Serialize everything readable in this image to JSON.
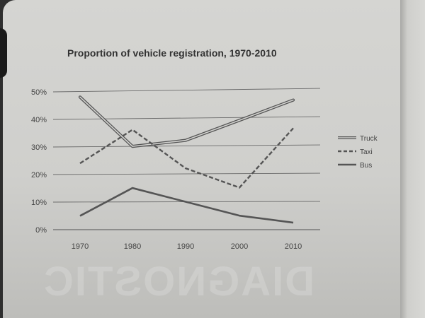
{
  "watermark_text": "DIAGNOSTIC",
  "chart_data": {
    "type": "line",
    "title": "Proportion of vehicle registration, 1970-2010",
    "xlabel": "",
    "ylabel": "",
    "categories": [
      "1970",
      "1980",
      "1990",
      "2000",
      "2010"
    ],
    "y_ticks": [
      "0%",
      "10%",
      "20%",
      "30%",
      "40%",
      "50%"
    ],
    "ylim": [
      0,
      50
    ],
    "grid": true,
    "legend_position": "right",
    "series": [
      {
        "name": "Truck",
        "style": "double",
        "color": "#555555",
        "values": [
          48,
          30,
          32,
          39,
          46
        ]
      },
      {
        "name": "Taxi",
        "style": "dashed",
        "color": "#555555",
        "values": [
          24,
          36,
          22,
          15,
          36
        ]
      },
      {
        "name": "Bus",
        "style": "solid",
        "color": "#555555",
        "values": [
          5,
          15,
          10,
          5,
          2.5
        ]
      }
    ]
  }
}
